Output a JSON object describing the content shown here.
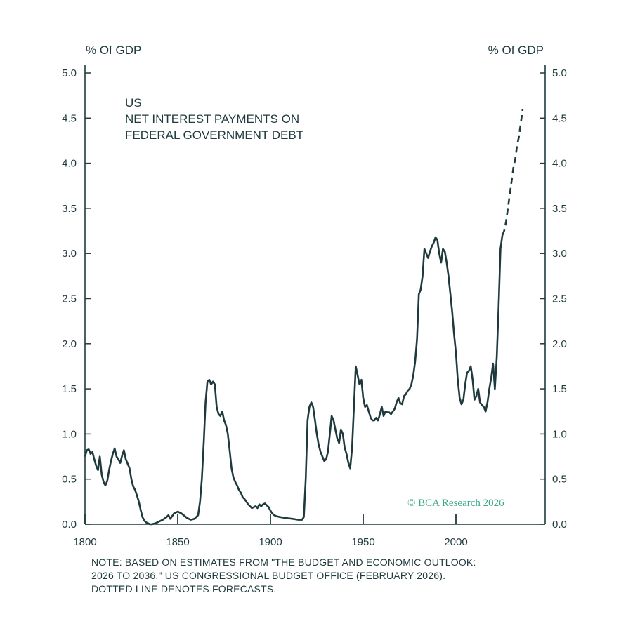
{
  "colors": {
    "line": "#1f3a3d",
    "copyright": "#3aa88a"
  },
  "header": {
    "unit_left": "% Of GDP",
    "unit_right": "% Of GDP"
  },
  "title_lines": [
    "US",
    "NET INTEREST PAYMENTS ON",
    "FEDERAL GOVERNMENT DEBT"
  ],
  "copyright": "© BCA Research 2026",
  "note_lines": [
    "NOTE: BASED ON ESTIMATES FROM \"THE BUDGET AND ECONOMIC OUTLOOK:",
    "2026 TO 2036,\" US CONGRESSIONAL BUDGET OFFICE (FEBRUARY 2026).",
    "DOTTED LINE DENOTES FORECASTS."
  ],
  "chart_data": {
    "type": "line",
    "xlim": [
      1800,
      2048
    ],
    "ylim": [
      0,
      5
    ],
    "x_ticks": [
      1800,
      1850,
      1900,
      1950,
      2000
    ],
    "y_ticks": [
      "0.0",
      "0.5",
      "1.0",
      "1.5",
      "2.0",
      "2.5",
      "3.0",
      "3.5",
      "4.0",
      "4.5",
      "5.0"
    ],
    "grid": false,
    "series": [
      {
        "style": "solid",
        "x": [
          1800,
          1801,
          1802,
          1803,
          1804,
          1805,
          1806,
          1807,
          1808,
          1809,
          1810,
          1811,
          1812,
          1813,
          1814,
          1815,
          1816,
          1817,
          1818,
          1819,
          1820,
          1821,
          1822,
          1823,
          1824,
          1825,
          1826,
          1827,
          1828,
          1829,
          1830,
          1831,
          1832,
          1833,
          1834,
          1835,
          1836,
          1838,
          1840,
          1842,
          1844,
          1845,
          1846,
          1848,
          1850,
          1852,
          1855,
          1857,
          1859,
          1861,
          1862,
          1863,
          1864,
          1865,
          1866,
          1867,
          1868,
          1869,
          1870,
          1871,
          1872,
          1873,
          1874,
          1875,
          1876,
          1877,
          1878,
          1879,
          1880,
          1881,
          1882,
          1883,
          1884,
          1885,
          1886,
          1888,
          1890,
          1892,
          1893,
          1894,
          1895,
          1896,
          1897,
          1898,
          1899,
          1900,
          1901,
          1902,
          1903,
          1905,
          1908,
          1912,
          1915,
          1917,
          1918,
          1919,
          1920,
          1921,
          1922,
          1923,
          1924,
          1925,
          1926,
          1927,
          1928,
          1929,
          1930,
          1931,
          1932,
          1933,
          1934,
          1935,
          1936,
          1937,
          1938,
          1939,
          1940,
          1941,
          1942,
          1943,
          1944,
          1945,
          1946,
          1947,
          1948,
          1949,
          1950,
          1951,
          1952,
          1953,
          1954,
          1955,
          1956,
          1957,
          1958,
          1959,
          1960,
          1961,
          1962,
          1963,
          1964,
          1965,
          1966,
          1967,
          1968,
          1969,
          1970,
          1971,
          1972,
          1973,
          1974,
          1975,
          1976,
          1977,
          1978,
          1979,
          1980,
          1981,
          1982,
          1983,
          1984,
          1985,
          1986,
          1987,
          1988,
          1989,
          1990,
          1991,
          1992,
          1993,
          1994,
          1995,
          1996,
          1997,
          1998,
          1999,
          2000,
          2001,
          2002,
          2003,
          2004,
          2005,
          2006,
          2007,
          2008,
          2009,
          2010,
          2011,
          2012,
          2013,
          2014,
          2015,
          2016,
          2017,
          2018,
          2019,
          2020,
          2021,
          2022,
          2023,
          2024,
          2025
        ],
        "y": [
          0.75,
          0.82,
          0.83,
          0.78,
          0.8,
          0.72,
          0.65,
          0.6,
          0.75,
          0.55,
          0.47,
          0.43,
          0.48,
          0.6,
          0.7,
          0.78,
          0.84,
          0.75,
          0.72,
          0.68,
          0.76,
          0.82,
          0.72,
          0.67,
          0.62,
          0.5,
          0.42,
          0.38,
          0.32,
          0.25,
          0.16,
          0.08,
          0.04,
          0.02,
          0.01,
          0.0,
          0.0,
          0.01,
          0.03,
          0.05,
          0.08,
          0.1,
          0.06,
          0.12,
          0.14,
          0.12,
          0.07,
          0.05,
          0.06,
          0.1,
          0.25,
          0.5,
          0.9,
          1.35,
          1.58,
          1.6,
          1.55,
          1.58,
          1.55,
          1.3,
          1.22,
          1.2,
          1.25,
          1.15,
          1.1,
          1.0,
          0.82,
          0.62,
          0.52,
          0.47,
          0.43,
          0.38,
          0.35,
          0.3,
          0.28,
          0.22,
          0.18,
          0.2,
          0.18,
          0.22,
          0.2,
          0.22,
          0.23,
          0.21,
          0.19,
          0.15,
          0.12,
          0.1,
          0.09,
          0.08,
          0.07,
          0.06,
          0.05,
          0.05,
          0.08,
          0.5,
          1.15,
          1.3,
          1.35,
          1.3,
          1.15,
          1.0,
          0.88,
          0.8,
          0.75,
          0.7,
          0.72,
          0.8,
          1.0,
          1.2,
          1.15,
          1.05,
          0.95,
          0.9,
          1.05,
          1.0,
          0.85,
          0.78,
          0.68,
          0.62,
          0.85,
          1.3,
          1.75,
          1.65,
          1.55,
          1.6,
          1.4,
          1.3,
          1.32,
          1.25,
          1.18,
          1.15,
          1.15,
          1.18,
          1.15,
          1.22,
          1.3,
          1.2,
          1.25,
          1.24,
          1.24,
          1.22,
          1.25,
          1.28,
          1.35,
          1.4,
          1.34,
          1.33,
          1.42,
          1.44,
          1.48,
          1.5,
          1.55,
          1.65,
          1.8,
          2.05,
          2.55,
          2.6,
          2.75,
          3.05,
          3.0,
          2.95,
          3.02,
          3.08,
          3.12,
          3.18,
          3.15,
          3.0,
          2.9,
          3.05,
          3.02,
          2.9,
          2.75,
          2.55,
          2.35,
          2.1,
          1.9,
          1.6,
          1.4,
          1.33,
          1.38,
          1.55,
          1.68,
          1.7,
          1.75,
          1.6,
          1.38,
          1.42,
          1.5,
          1.35,
          1.32,
          1.3,
          1.25,
          1.35,
          1.5,
          1.62,
          1.78,
          1.5,
          1.85,
          2.4,
          3.05,
          3.2
        ]
      },
      {
        "style": "dashed",
        "x": [
          2025,
          2026,
          2027,
          2028,
          2029,
          2030,
          2031,
          2032,
          2033,
          2034,
          2035,
          2036
        ],
        "y": [
          3.2,
          3.25,
          3.35,
          3.5,
          3.65,
          3.8,
          3.95,
          4.05,
          4.2,
          4.3,
          4.45,
          4.6
        ]
      }
    ]
  }
}
